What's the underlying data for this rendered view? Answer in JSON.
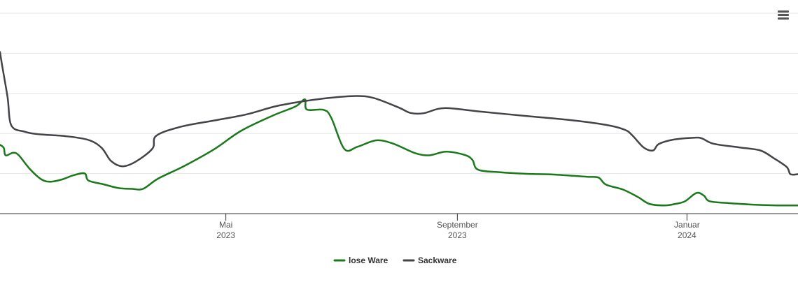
{
  "chart_data": {
    "type": "line",
    "title": "",
    "xlabel": "",
    "ylabel": "",
    "x_range": [
      "2023-01-01",
      "2024-02-29"
    ],
    "y_range": [
      0,
      5.33
    ],
    "grid": true,
    "legend_position": "bottom-center",
    "x_ticks": [
      {
        "date": "2023-05-01",
        "month": "Mai",
        "year": "2023"
      },
      {
        "date": "2023-09-01",
        "month": "September",
        "year": "2023"
      },
      {
        "date": "2024-01-01",
        "month": "Januar",
        "year": "2024"
      }
    ],
    "series": [
      {
        "name": "lose Ware",
        "color": "#1a7a1a",
        "points": [
          [
            "2023-01-01",
            1.83
          ],
          [
            "2023-01-03",
            1.75
          ],
          [
            "2023-01-04",
            1.55
          ],
          [
            "2023-01-08",
            1.62
          ],
          [
            "2023-01-11",
            1.55
          ],
          [
            "2023-01-17",
            1.18
          ],
          [
            "2023-01-23",
            0.91
          ],
          [
            "2023-01-28",
            0.85
          ],
          [
            "2023-02-03",
            0.91
          ],
          [
            "2023-02-09",
            1.02
          ],
          [
            "2023-02-15",
            1.07
          ],
          [
            "2023-02-17",
            0.88
          ],
          [
            "2023-02-25",
            0.78
          ],
          [
            "2023-03-05",
            0.68
          ],
          [
            "2023-03-12",
            0.66
          ],
          [
            "2023-03-18",
            0.66
          ],
          [
            "2023-03-26",
            0.93
          ],
          [
            "2023-04-09",
            1.27
          ],
          [
            "2023-04-25",
            1.72
          ],
          [
            "2023-05-09",
            2.2
          ],
          [
            "2023-05-26",
            2.61
          ],
          [
            "2023-06-07",
            2.85
          ],
          [
            "2023-06-12",
            3.04
          ],
          [
            "2023-06-13",
            2.77
          ],
          [
            "2023-06-22",
            2.76
          ],
          [
            "2023-06-26",
            2.55
          ],
          [
            "2023-07-03",
            1.72
          ],
          [
            "2023-07-10",
            1.78
          ],
          [
            "2023-07-20",
            1.95
          ],
          [
            "2023-07-29",
            1.86
          ],
          [
            "2023-08-09",
            1.62
          ],
          [
            "2023-08-17",
            1.55
          ],
          [
            "2023-08-26",
            1.65
          ],
          [
            "2023-09-05",
            1.56
          ],
          [
            "2023-09-09",
            1.43
          ],
          [
            "2023-09-12",
            1.17
          ],
          [
            "2023-09-24",
            1.1
          ],
          [
            "2023-10-07",
            1.06
          ],
          [
            "2023-10-22",
            1.04
          ],
          [
            "2023-11-09",
            0.98
          ],
          [
            "2023-11-15",
            0.96
          ],
          [
            "2023-11-19",
            0.77
          ],
          [
            "2023-11-28",
            0.64
          ],
          [
            "2023-12-06",
            0.44
          ],
          [
            "2023-12-12",
            0.26
          ],
          [
            "2023-12-20",
            0.22
          ],
          [
            "2023-12-26",
            0.26
          ],
          [
            "2023-12-31",
            0.33
          ],
          [
            "2024-01-06",
            0.55
          ],
          [
            "2024-01-10",
            0.48
          ],
          [
            "2024-01-13",
            0.33
          ],
          [
            "2024-01-23",
            0.28
          ],
          [
            "2024-02-05",
            0.24
          ],
          [
            "2024-02-18",
            0.22
          ],
          [
            "2024-02-29",
            0.22
          ]
        ]
      },
      {
        "name": "Sackware",
        "color": "#434348",
        "points": [
          [
            "2023-01-01",
            4.3
          ],
          [
            "2023-01-02",
            3.98
          ],
          [
            "2023-01-05",
            3.1
          ],
          [
            "2023-01-07",
            2.35
          ],
          [
            "2023-01-14",
            2.18
          ],
          [
            "2023-01-22",
            2.11
          ],
          [
            "2023-02-05",
            2.06
          ],
          [
            "2023-02-17",
            1.96
          ],
          [
            "2023-02-24",
            1.75
          ],
          [
            "2023-03-01",
            1.4
          ],
          [
            "2023-03-07",
            1.26
          ],
          [
            "2023-03-14",
            1.38
          ],
          [
            "2023-03-23",
            1.73
          ],
          [
            "2023-03-25",
            2.07
          ],
          [
            "2023-04-07",
            2.31
          ],
          [
            "2023-04-25",
            2.48
          ],
          [
            "2023-05-12",
            2.64
          ],
          [
            "2023-05-27",
            2.85
          ],
          [
            "2023-06-10",
            2.98
          ],
          [
            "2023-06-25",
            3.08
          ],
          [
            "2023-07-10",
            3.13
          ],
          [
            "2023-07-19",
            3.07
          ],
          [
            "2023-08-01",
            2.82
          ],
          [
            "2023-08-07",
            2.68
          ],
          [
            "2023-08-14",
            2.67
          ],
          [
            "2023-08-22",
            2.79
          ],
          [
            "2023-08-29",
            2.8
          ],
          [
            "2023-09-12",
            2.72
          ],
          [
            "2023-10-07",
            2.6
          ],
          [
            "2023-10-29",
            2.5
          ],
          [
            "2023-11-19",
            2.36
          ],
          [
            "2023-11-29",
            2.23
          ],
          [
            "2023-12-03",
            2.08
          ],
          [
            "2023-12-09",
            1.76
          ],
          [
            "2023-12-14",
            1.68
          ],
          [
            "2023-12-17",
            1.85
          ],
          [
            "2023-12-25",
            1.97
          ],
          [
            "2024-01-05",
            2.02
          ],
          [
            "2024-01-09",
            2.0
          ],
          [
            "2024-01-15",
            1.86
          ],
          [
            "2024-01-29",
            1.76
          ],
          [
            "2024-02-09",
            1.68
          ],
          [
            "2024-02-16",
            1.48
          ],
          [
            "2024-02-23",
            1.24
          ],
          [
            "2024-02-25",
            1.05
          ],
          [
            "2024-02-29",
            1.05
          ]
        ]
      }
    ]
  },
  "ui": {
    "menu_icon": "hamburger-menu-icon"
  }
}
